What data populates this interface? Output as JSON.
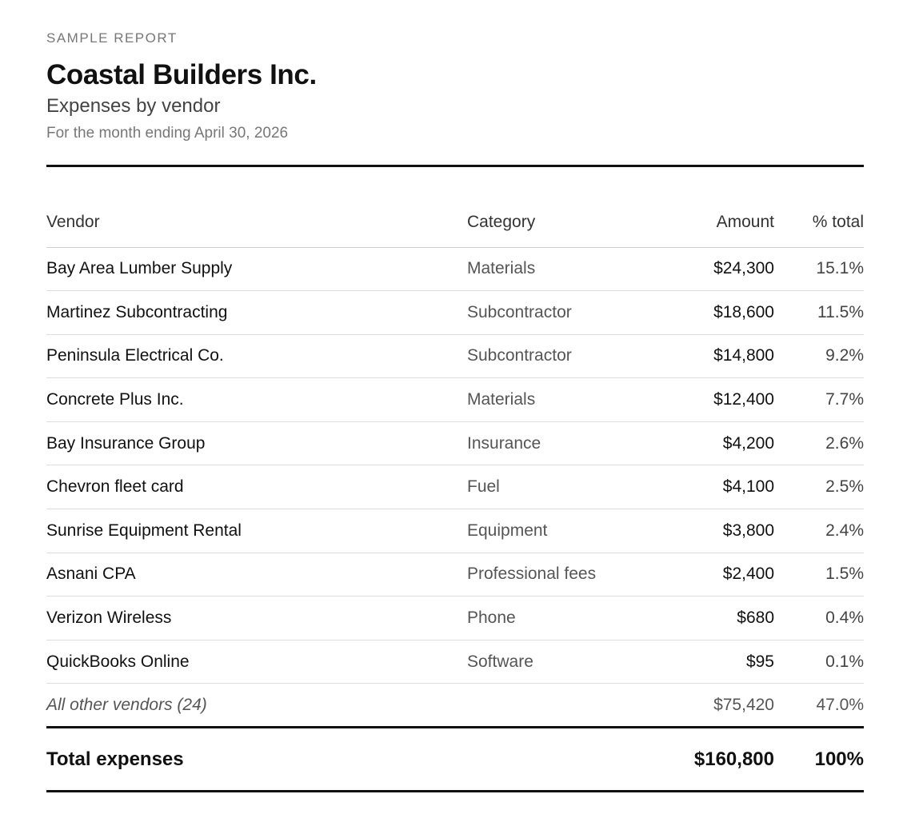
{
  "report": {
    "eyebrow": "SAMPLE REPORT",
    "company": "Coastal Builders Inc.",
    "subtitle": "Expenses by vendor",
    "period": "For the month ending April 30, 2026"
  },
  "table": {
    "headers": {
      "vendor": "Vendor",
      "category": "Category",
      "amount": "Amount",
      "percent": "% total"
    },
    "rows": [
      {
        "vendor": "Bay Area Lumber Supply",
        "category": "Materials",
        "amount": "$24,300",
        "percent": "15.1%"
      },
      {
        "vendor": "Martinez Subcontracting",
        "category": "Subcontractor",
        "amount": "$18,600",
        "percent": "11.5%"
      },
      {
        "vendor": "Peninsula Electrical Co.",
        "category": "Subcontractor",
        "amount": "$14,800",
        "percent": "9.2%"
      },
      {
        "vendor": "Concrete Plus Inc.",
        "category": "Materials",
        "amount": "$12,400",
        "percent": "7.7%"
      },
      {
        "vendor": "Bay Insurance Group",
        "category": "Insurance",
        "amount": "$4,200",
        "percent": "2.6%"
      },
      {
        "vendor": "Chevron fleet card",
        "category": "Fuel",
        "amount": "$4,100",
        "percent": "2.5%"
      },
      {
        "vendor": "Sunrise Equipment Rental",
        "category": "Equipment",
        "amount": "$3,800",
        "percent": "2.4%"
      },
      {
        "vendor": "Asnani CPA",
        "category": "Professional fees",
        "amount": "$2,400",
        "percent": "1.5%"
      },
      {
        "vendor": "Verizon Wireless",
        "category": "Phone",
        "amount": "$680",
        "percent": "0.4%"
      },
      {
        "vendor": "QuickBooks Online",
        "category": "Software",
        "amount": "$95",
        "percent": "0.1%"
      }
    ],
    "other": {
      "vendor": "All other vendors (24)",
      "category": "",
      "amount": "$75,420",
      "percent": "47.0%"
    },
    "total": {
      "label": "Total expenses",
      "amount": "$160,800",
      "percent": "100%"
    }
  }
}
